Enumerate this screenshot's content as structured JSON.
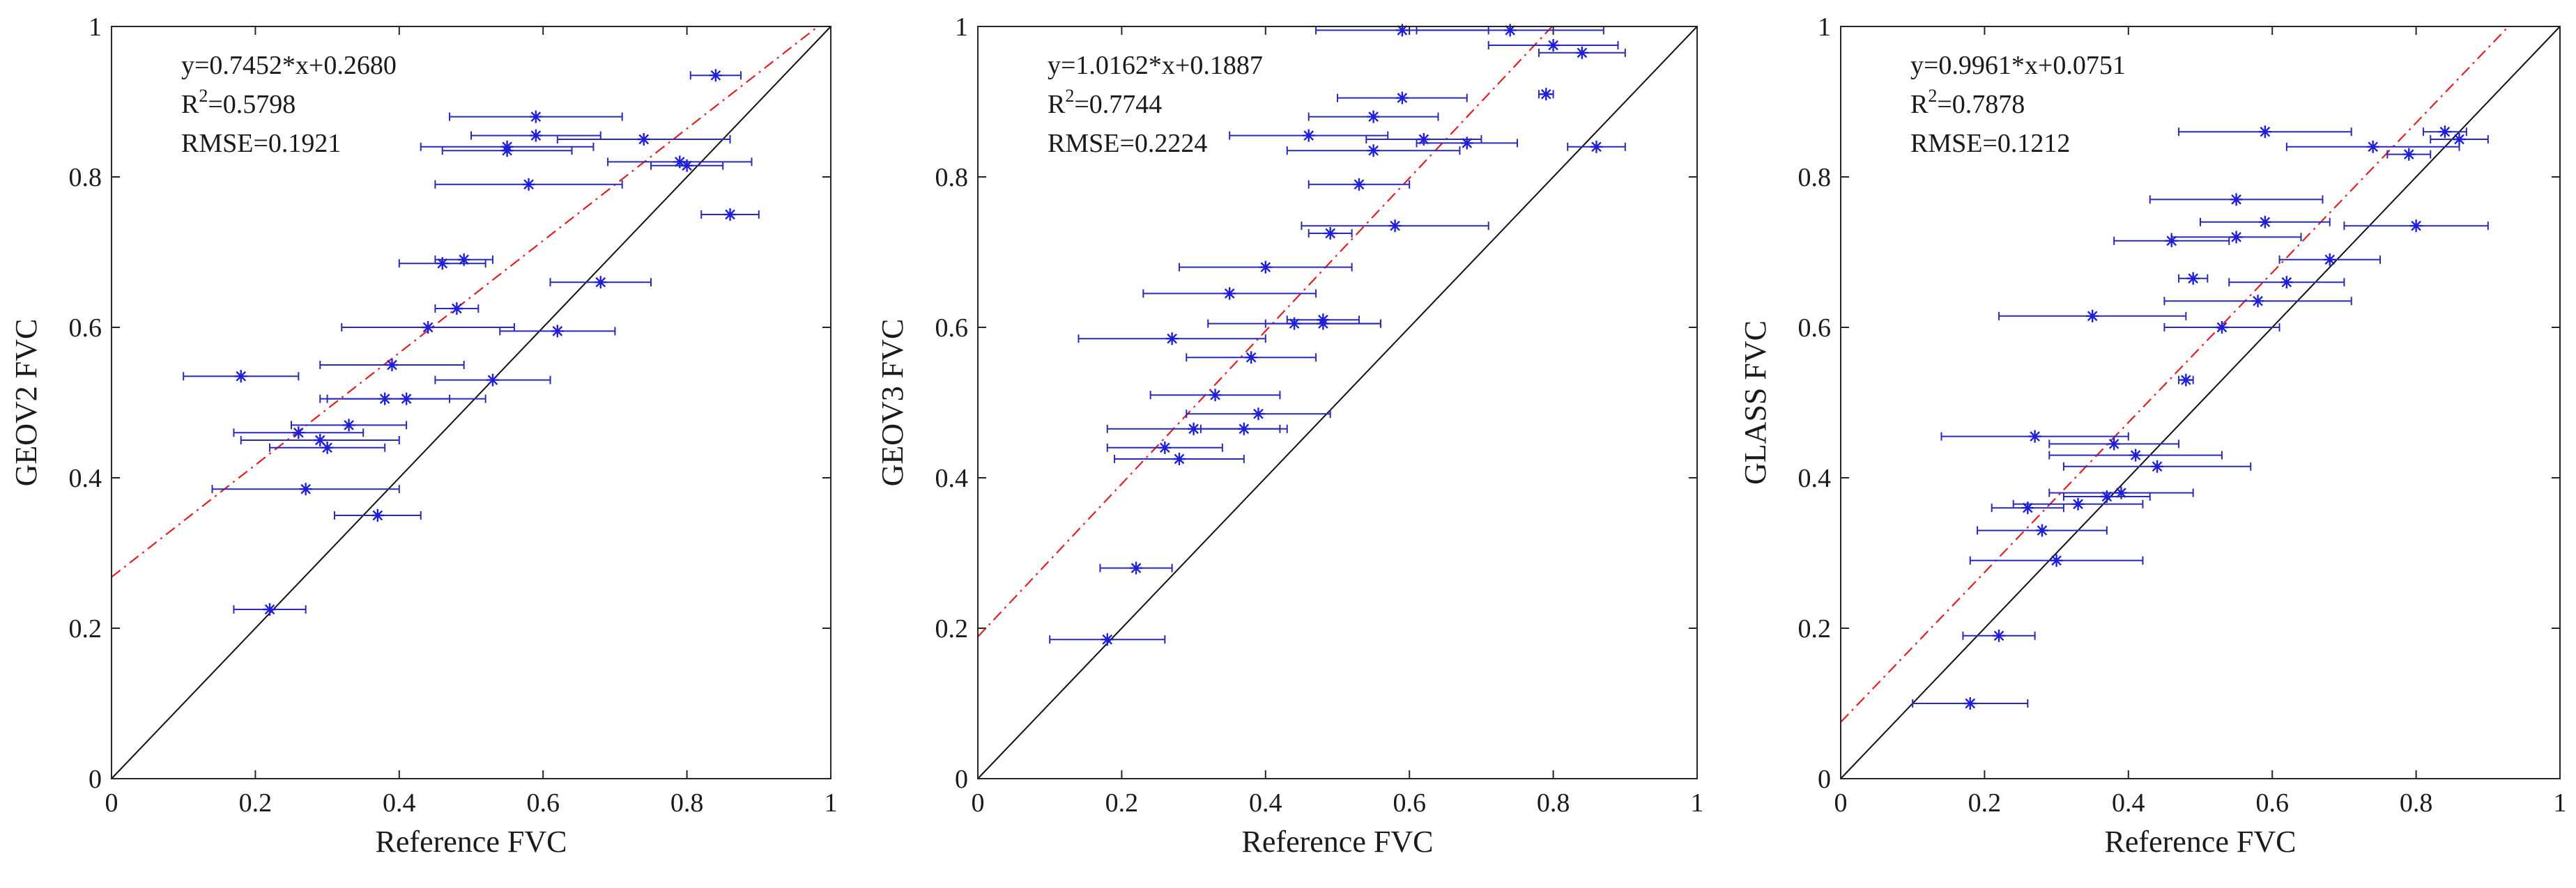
{
  "chart_data": [
    {
      "type": "scatter",
      "id": "geov2",
      "xlabel": "Reference FVC",
      "ylabel": "GEOV2 FVC",
      "xlim": [
        0,
        1
      ],
      "ylim": [
        0,
        1
      ],
      "xticks": [
        "0",
        "0.2",
        "0.4",
        "0.6",
        "0.8",
        "1"
      ],
      "yticks": [
        "0",
        "0.2",
        "0.4",
        "0.6",
        "0.8",
        "1"
      ],
      "annotation": {
        "line1": "y=0.7452*x+0.2680",
        "line2_base": "R",
        "line2_sup": "2",
        "line2_rest": "=0.5798",
        "line3": "RMSE=0.1921"
      },
      "fit": {
        "slope": 0.7452,
        "intercept": 0.268
      },
      "points": [
        {
          "x": 0.84,
          "y": 0.935,
          "err": 0.035
        },
        {
          "x": 0.59,
          "y": 0.88,
          "err": 0.12
        },
        {
          "x": 0.59,
          "y": 0.855,
          "err": 0.09
        },
        {
          "x": 0.55,
          "y": 0.84,
          "err": 0.12
        },
        {
          "x": 0.55,
          "y": 0.835,
          "err": 0.09
        },
        {
          "x": 0.74,
          "y": 0.85,
          "err": 0.12
        },
        {
          "x": 0.79,
          "y": 0.82,
          "err": 0.1
        },
        {
          "x": 0.8,
          "y": 0.815,
          "err": 0.05
        },
        {
          "x": 0.58,
          "y": 0.79,
          "err": 0.13
        },
        {
          "x": 0.86,
          "y": 0.75,
          "err": 0.04
        },
        {
          "x": 0.46,
          "y": 0.685,
          "err": 0.06
        },
        {
          "x": 0.49,
          "y": 0.69,
          "err": 0.04
        },
        {
          "x": 0.68,
          "y": 0.66,
          "err": 0.07
        },
        {
          "x": 0.48,
          "y": 0.625,
          "err": 0.03
        },
        {
          "x": 0.44,
          "y": 0.6,
          "err": 0.12
        },
        {
          "x": 0.62,
          "y": 0.595,
          "err": 0.08
        },
        {
          "x": 0.18,
          "y": 0.535,
          "err": 0.08
        },
        {
          "x": 0.39,
          "y": 0.55,
          "err": 0.1
        },
        {
          "x": 0.53,
          "y": 0.53,
          "err": 0.08
        },
        {
          "x": 0.38,
          "y": 0.505,
          "err": 0.09
        },
        {
          "x": 0.41,
          "y": 0.505,
          "err": 0.11
        },
        {
          "x": 0.33,
          "y": 0.47,
          "err": 0.08
        },
        {
          "x": 0.26,
          "y": 0.46,
          "err": 0.09
        },
        {
          "x": 0.29,
          "y": 0.45,
          "err": 0.11
        },
        {
          "x": 0.3,
          "y": 0.44,
          "err": 0.08
        },
        {
          "x": 0.27,
          "y": 0.385,
          "err": 0.13
        },
        {
          "x": 0.37,
          "y": 0.35,
          "err": 0.06
        },
        {
          "x": 0.22,
          "y": 0.225,
          "err": 0.05
        }
      ]
    },
    {
      "type": "scatter",
      "id": "geov3",
      "xlabel": "Reference FVC",
      "ylabel": "GEOV3 FVC",
      "xlim": [
        0,
        1
      ],
      "ylim": [
        0,
        1
      ],
      "xticks": [
        "0",
        "0.2",
        "0.4",
        "0.6",
        "0.8",
        "1"
      ],
      "yticks": [
        "0",
        "0.2",
        "0.4",
        "0.6",
        "0.8",
        "1"
      ],
      "annotation": {
        "line1": "y=1.0162*x+0.1887",
        "line2_base": "R",
        "line2_sup": "2",
        "line2_rest": "=0.7744",
        "line3": "RMSE=0.2224"
      },
      "fit": {
        "slope": 1.0162,
        "intercept": 0.1887
      },
      "points": [
        {
          "x": 0.59,
          "y": 0.995,
          "err": 0.12
        },
        {
          "x": 0.74,
          "y": 0.995,
          "err": 0.13
        },
        {
          "x": 0.8,
          "y": 0.975,
          "err": 0.09
        },
        {
          "x": 0.84,
          "y": 0.965,
          "err": 0.06
        },
        {
          "x": 0.79,
          "y": 0.91,
          "err": 0.01
        },
        {
          "x": 0.59,
          "y": 0.905,
          "err": 0.09
        },
        {
          "x": 0.55,
          "y": 0.88,
          "err": 0.09
        },
        {
          "x": 0.46,
          "y": 0.855,
          "err": 0.11
        },
        {
          "x": 0.62,
          "y": 0.85,
          "err": 0.08
        },
        {
          "x": 0.68,
          "y": 0.845,
          "err": 0.07
        },
        {
          "x": 0.55,
          "y": 0.835,
          "err": 0.12
        },
        {
          "x": 0.86,
          "y": 0.84,
          "err": 0.04
        },
        {
          "x": 0.53,
          "y": 0.79,
          "err": 0.07
        },
        {
          "x": 0.58,
          "y": 0.735,
          "err": 0.13
        },
        {
          "x": 0.49,
          "y": 0.725,
          "err": 0.03
        },
        {
          "x": 0.4,
          "y": 0.68,
          "err": 0.12
        },
        {
          "x": 0.35,
          "y": 0.645,
          "err": 0.12
        },
        {
          "x": 0.48,
          "y": 0.61,
          "err": 0.05
        },
        {
          "x": 0.48,
          "y": 0.605,
          "err": 0.08
        },
        {
          "x": 0.44,
          "y": 0.605,
          "err": 0.12
        },
        {
          "x": 0.27,
          "y": 0.585,
          "err": 0.13
        },
        {
          "x": 0.38,
          "y": 0.56,
          "err": 0.09
        },
        {
          "x": 0.33,
          "y": 0.51,
          "err": 0.09
        },
        {
          "x": 0.39,
          "y": 0.485,
          "err": 0.1
        },
        {
          "x": 0.3,
          "y": 0.465,
          "err": 0.12
        },
        {
          "x": 0.37,
          "y": 0.465,
          "err": 0.06
        },
        {
          "x": 0.26,
          "y": 0.44,
          "err": 0.08
        },
        {
          "x": 0.28,
          "y": 0.425,
          "err": 0.09
        },
        {
          "x": 0.22,
          "y": 0.28,
          "err": 0.05
        },
        {
          "x": 0.18,
          "y": 0.185,
          "err": 0.08
        }
      ]
    },
    {
      "type": "scatter",
      "id": "glass",
      "xlabel": "Reference FVC",
      "ylabel": "GLASS FVC",
      "xlim": [
        0,
        1
      ],
      "ylim": [
        0,
        1
      ],
      "xticks": [
        "0",
        "0.2",
        "0.4",
        "0.6",
        "0.8",
        "1"
      ],
      "yticks": [
        "0",
        "0.2",
        "0.4",
        "0.6",
        "0.8",
        "1"
      ],
      "annotation": {
        "line1": "y=0.9961*x+0.0751",
        "line2_base": "R",
        "line2_sup": "2",
        "line2_rest": "=0.7878",
        "line3": "RMSE=0.1212"
      },
      "fit": {
        "slope": 0.9961,
        "intercept": 0.0751
      },
      "points": [
        {
          "x": 0.84,
          "y": 0.86,
          "err": 0.03
        },
        {
          "x": 0.86,
          "y": 0.85,
          "err": 0.04
        },
        {
          "x": 0.59,
          "y": 0.86,
          "err": 0.12
        },
        {
          "x": 0.74,
          "y": 0.84,
          "err": 0.12
        },
        {
          "x": 0.79,
          "y": 0.83,
          "err": 0.03
        },
        {
          "x": 0.55,
          "y": 0.77,
          "err": 0.12
        },
        {
          "x": 0.59,
          "y": 0.74,
          "err": 0.09
        },
        {
          "x": 0.8,
          "y": 0.735,
          "err": 0.1
        },
        {
          "x": 0.55,
          "y": 0.72,
          "err": 0.09
        },
        {
          "x": 0.46,
          "y": 0.715,
          "err": 0.08
        },
        {
          "x": 0.68,
          "y": 0.69,
          "err": 0.07
        },
        {
          "x": 0.49,
          "y": 0.665,
          "err": 0.02
        },
        {
          "x": 0.62,
          "y": 0.66,
          "err": 0.08
        },
        {
          "x": 0.58,
          "y": 0.635,
          "err": 0.13
        },
        {
          "x": 0.35,
          "y": 0.615,
          "err": 0.13
        },
        {
          "x": 0.53,
          "y": 0.6,
          "err": 0.08
        },
        {
          "x": 0.48,
          "y": 0.53,
          "err": 0.01
        },
        {
          "x": 0.27,
          "y": 0.455,
          "err": 0.13
        },
        {
          "x": 0.38,
          "y": 0.445,
          "err": 0.09
        },
        {
          "x": 0.41,
          "y": 0.43,
          "err": 0.12
        },
        {
          "x": 0.44,
          "y": 0.415,
          "err": 0.13
        },
        {
          "x": 0.39,
          "y": 0.38,
          "err": 0.1
        },
        {
          "x": 0.37,
          "y": 0.375,
          "err": 0.06
        },
        {
          "x": 0.33,
          "y": 0.365,
          "err": 0.09
        },
        {
          "x": 0.26,
          "y": 0.36,
          "err": 0.05
        },
        {
          "x": 0.28,
          "y": 0.33,
          "err": 0.09
        },
        {
          "x": 0.3,
          "y": 0.29,
          "err": 0.12
        },
        {
          "x": 0.22,
          "y": 0.19,
          "err": 0.05
        },
        {
          "x": 0.18,
          "y": 0.1,
          "err": 0.08
        }
      ]
    }
  ],
  "colors": {
    "marker": "#1f1fd8",
    "errorbar": "#2a2ab8",
    "fit_line": "#e02020",
    "identity_line": "#111111",
    "axis": "#262626"
  }
}
